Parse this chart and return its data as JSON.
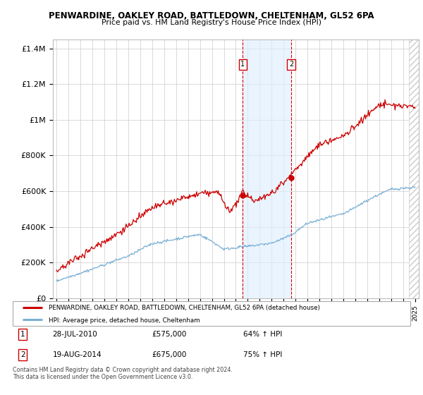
{
  "title1": "PENWARDINE, OAKLEY ROAD, BATTLEDOWN, CHELTENHAM, GL52 6PA",
  "title2": "Price paid vs. HM Land Registry's House Price Index (HPI)",
  "ylim": [
    0,
    1450000
  ],
  "yticks": [
    0,
    200000,
    400000,
    600000,
    800000,
    1000000,
    1200000,
    1400000
  ],
  "ytick_labels": [
    "£0",
    "£200K",
    "£400K",
    "£600K",
    "£800K",
    "£1M",
    "£1.2M",
    "£1.4M"
  ],
  "line1_color": "#cc0000",
  "line2_color": "#7ab0d4",
  "marker1_date": 2010.57,
  "marker2_date": 2014.63,
  "marker1_value": 575000,
  "marker2_value": 675000,
  "sale1_label": "28-JUL-2010",
  "sale1_price": "£575,000",
  "sale1_hpi": "64% ↑ HPI",
  "sale2_label": "19-AUG-2014",
  "sale2_price": "£675,000",
  "sale2_hpi": "75% ↑ HPI",
  "legend1": "PENWARDINE, OAKLEY ROAD, BATTLEDOWN, CHELTENHAM, GL52 6PA (detached house)",
  "legend2": "HPI: Average price, detached house, Cheltenham",
  "footnote": "Contains HM Land Registry data © Crown copyright and database right 2024.\nThis data is licensed under the Open Government Licence v3.0.",
  "hatch_start": 2024.5,
  "xlim_start": 1994.7,
  "xlim_end": 2025.3
}
